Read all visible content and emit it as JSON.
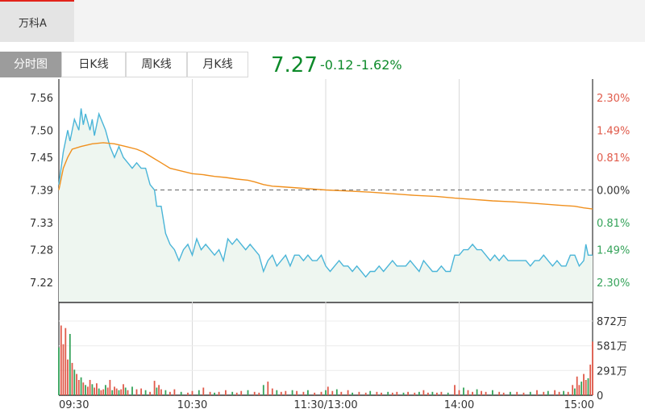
{
  "stock": {
    "name": "万科A"
  },
  "tabs": [
    "分时图",
    "日K线",
    "周K线",
    "月K线"
  ],
  "quote": {
    "price": "7.27",
    "change": "-0.12",
    "change_pct": "-1.62%"
  },
  "colors": {
    "price_line": "#4ab5d8",
    "avg_line": "#f0901e",
    "up": "#e05a4a",
    "down": "#35a35a",
    "pos_pct": "#e05a4a",
    "neg_pct": "#35a35a"
  },
  "chart_data": {
    "type": "line",
    "subtype": "intraday-timeshare",
    "prev_close": 7.39,
    "y_ticks": [
      "7.56",
      "7.50",
      "7.45",
      "7.39",
      "7.33",
      "7.28",
      "7.22"
    ],
    "y_tick_values": [
      7.56,
      7.5,
      7.45,
      7.39,
      7.33,
      7.28,
      7.22
    ],
    "pct_ticks": [
      "2.30%",
      "1.49%",
      "0.81%",
      "0.00%",
      "0.81%",
      "1.49%",
      "2.30%"
    ],
    "pct_signs": [
      1,
      1,
      1,
      0,
      -1,
      -1,
      -1
    ],
    "x_ticks": [
      "09:30",
      "10:30",
      "11:30/13:00",
      "14:00",
      "15:00"
    ],
    "x_tick_minutes": [
      0,
      60,
      120,
      180,
      240
    ],
    "total_minutes": 240,
    "ylim": [
      7.19,
      7.59
    ],
    "price_points": [
      [
        0,
        7.4
      ],
      [
        2,
        7.46
      ],
      [
        4,
        7.5
      ],
      [
        5,
        7.48
      ],
      [
        7,
        7.52
      ],
      [
        9,
        7.5
      ],
      [
        10,
        7.54
      ],
      [
        11,
        7.51
      ],
      [
        12,
        7.53
      ],
      [
        14,
        7.5
      ],
      [
        15,
        7.52
      ],
      [
        16,
        7.49
      ],
      [
        18,
        7.53
      ],
      [
        20,
        7.51
      ],
      [
        21,
        7.5
      ],
      [
        23,
        7.47
      ],
      [
        25,
        7.45
      ],
      [
        27,
        7.47
      ],
      [
        29,
        7.45
      ],
      [
        31,
        7.44
      ],
      [
        33,
        7.43
      ],
      [
        35,
        7.44
      ],
      [
        37,
        7.43
      ],
      [
        39,
        7.43
      ],
      [
        41,
        7.4
      ],
      [
        43,
        7.39
      ],
      [
        44,
        7.36
      ],
      [
        46,
        7.36
      ],
      [
        48,
        7.31
      ],
      [
        50,
        7.29
      ],
      [
        52,
        7.28
      ],
      [
        54,
        7.26
      ],
      [
        56,
        7.28
      ],
      [
        58,
        7.29
      ],
      [
        60,
        7.27
      ],
      [
        62,
        7.3
      ],
      [
        64,
        7.28
      ],
      [
        66,
        7.29
      ],
      [
        68,
        7.28
      ],
      [
        70,
        7.27
      ],
      [
        72,
        7.28
      ],
      [
        74,
        7.26
      ],
      [
        76,
        7.3
      ],
      [
        78,
        7.29
      ],
      [
        80,
        7.3
      ],
      [
        82,
        7.29
      ],
      [
        84,
        7.28
      ],
      [
        86,
        7.29
      ],
      [
        88,
        7.28
      ],
      [
        90,
        7.27
      ],
      [
        92,
        7.24
      ],
      [
        94,
        7.26
      ],
      [
        96,
        7.27
      ],
      [
        98,
        7.25
      ],
      [
        100,
        7.26
      ],
      [
        102,
        7.27
      ],
      [
        104,
        7.25
      ],
      [
        106,
        7.27
      ],
      [
        108,
        7.27
      ],
      [
        110,
        7.26
      ],
      [
        112,
        7.27
      ],
      [
        114,
        7.26
      ],
      [
        116,
        7.26
      ],
      [
        118,
        7.27
      ],
      [
        120,
        7.25
      ],
      [
        122,
        7.24
      ],
      [
        124,
        7.25
      ],
      [
        126,
        7.26
      ],
      [
        128,
        7.25
      ],
      [
        130,
        7.25
      ],
      [
        132,
        7.24
      ],
      [
        134,
        7.25
      ],
      [
        136,
        7.24
      ],
      [
        138,
        7.23
      ],
      [
        140,
        7.24
      ],
      [
        142,
        7.24
      ],
      [
        144,
        7.25
      ],
      [
        146,
        7.24
      ],
      [
        148,
        7.25
      ],
      [
        150,
        7.26
      ],
      [
        152,
        7.25
      ],
      [
        154,
        7.25
      ],
      [
        156,
        7.25
      ],
      [
        158,
        7.26
      ],
      [
        160,
        7.25
      ],
      [
        162,
        7.24
      ],
      [
        164,
        7.26
      ],
      [
        166,
        7.25
      ],
      [
        168,
        7.24
      ],
      [
        170,
        7.24
      ],
      [
        172,
        7.25
      ],
      [
        174,
        7.24
      ],
      [
        176,
        7.24
      ],
      [
        178,
        7.27
      ],
      [
        180,
        7.27
      ],
      [
        182,
        7.28
      ],
      [
        184,
        7.28
      ],
      [
        186,
        7.29
      ],
      [
        188,
        7.28
      ],
      [
        190,
        7.28
      ],
      [
        192,
        7.27
      ],
      [
        194,
        7.26
      ],
      [
        196,
        7.27
      ],
      [
        198,
        7.26
      ],
      [
        200,
        7.27
      ],
      [
        202,
        7.26
      ],
      [
        204,
        7.26
      ],
      [
        206,
        7.26
      ],
      [
        208,
        7.26
      ],
      [
        210,
        7.26
      ],
      [
        212,
        7.25
      ],
      [
        214,
        7.26
      ],
      [
        216,
        7.26
      ],
      [
        218,
        7.27
      ],
      [
        220,
        7.26
      ],
      [
        222,
        7.25
      ],
      [
        224,
        7.26
      ],
      [
        226,
        7.25
      ],
      [
        228,
        7.25
      ],
      [
        230,
        7.27
      ],
      [
        232,
        7.27
      ],
      [
        234,
        7.25
      ],
      [
        236,
        7.26
      ],
      [
        237,
        7.29
      ],
      [
        238,
        7.27
      ],
      [
        240,
        7.27
      ]
    ],
    "avg_points": [
      [
        0,
        7.39
      ],
      [
        2,
        7.43
      ],
      [
        4,
        7.45
      ],
      [
        6,
        7.465
      ],
      [
        10,
        7.47
      ],
      [
        15,
        7.475
      ],
      [
        20,
        7.477
      ],
      [
        25,
        7.475
      ],
      [
        30,
        7.47
      ],
      [
        35,
        7.465
      ],
      [
        38,
        7.46
      ],
      [
        42,
        7.45
      ],
      [
        46,
        7.44
      ],
      [
        50,
        7.43
      ],
      [
        55,
        7.425
      ],
      [
        60,
        7.42
      ],
      [
        65,
        7.418
      ],
      [
        70,
        7.415
      ],
      [
        75,
        7.413
      ],
      [
        80,
        7.41
      ],
      [
        85,
        7.408
      ],
      [
        88,
        7.405
      ],
      [
        92,
        7.4
      ],
      [
        96,
        7.397
      ],
      [
        100,
        7.396
      ],
      [
        110,
        7.393
      ],
      [
        120,
        7.39
      ],
      [
        130,
        7.388
      ],
      [
        140,
        7.386
      ],
      [
        150,
        7.383
      ],
      [
        160,
        7.38
      ],
      [
        170,
        7.378
      ],
      [
        178,
        7.375
      ],
      [
        185,
        7.373
      ],
      [
        195,
        7.37
      ],
      [
        205,
        7.368
      ],
      [
        215,
        7.365
      ],
      [
        225,
        7.362
      ],
      [
        232,
        7.36
      ],
      [
        236,
        7.357
      ],
      [
        240,
        7.355
      ]
    ],
    "volume": {
      "y_ticks": [
        "872万",
        "581万",
        "291万",
        "0"
      ],
      "y_tick_values": [
        872,
        581,
        291,
        0
      ],
      "max": 872,
      "bars": [
        [
          0,
          560,
          "down"
        ],
        [
          1,
          820,
          "up"
        ],
        [
          2,
          600,
          "up"
        ],
        [
          3,
          790,
          "up"
        ],
        [
          4,
          420,
          "up"
        ],
        [
          5,
          720,
          "down"
        ],
        [
          6,
          380,
          "up"
        ],
        [
          7,
          300,
          "down"
        ],
        [
          8,
          250,
          "up"
        ],
        [
          9,
          180,
          "up"
        ],
        [
          10,
          210,
          "down"
        ],
        [
          11,
          150,
          "up"
        ],
        [
          12,
          120,
          "down"
        ],
        [
          13,
          100,
          "up"
        ],
        [
          14,
          180,
          "up"
        ],
        [
          15,
          130,
          "down"
        ],
        [
          16,
          90,
          "up"
        ],
        [
          17,
          140,
          "up"
        ],
        [
          18,
          80,
          "down"
        ],
        [
          19,
          60,
          "up"
        ],
        [
          20,
          70,
          "up"
        ],
        [
          21,
          120,
          "down"
        ],
        [
          22,
          90,
          "up"
        ],
        [
          23,
          180,
          "up"
        ],
        [
          24,
          60,
          "down"
        ],
        [
          25,
          100,
          "up"
        ],
        [
          26,
          80,
          "up"
        ],
        [
          27,
          60,
          "down"
        ],
        [
          28,
          70,
          "up"
        ],
        [
          29,
          130,
          "up"
        ],
        [
          30,
          90,
          "down"
        ],
        [
          31,
          60,
          "up"
        ],
        [
          33,
          100,
          "down"
        ],
        [
          35,
          70,
          "up"
        ],
        [
          37,
          80,
          "up"
        ],
        [
          39,
          60,
          "down"
        ],
        [
          41,
          40,
          "up"
        ],
        [
          43,
          170,
          "up"
        ],
        [
          44,
          90,
          "down"
        ],
        [
          45,
          120,
          "up"
        ],
        [
          46,
          70,
          "up"
        ],
        [
          48,
          60,
          "down"
        ],
        [
          50,
          40,
          "up"
        ],
        [
          52,
          70,
          "up"
        ],
        [
          55,
          40,
          "down"
        ],
        [
          58,
          30,
          "up"
        ],
        [
          60,
          50,
          "up"
        ],
        [
          63,
          60,
          "down"
        ],
        [
          65,
          90,
          "up"
        ],
        [
          68,
          40,
          "up"
        ],
        [
          70,
          30,
          "down"
        ],
        [
          72,
          40,
          "up"
        ],
        [
          75,
          60,
          "up"
        ],
        [
          78,
          40,
          "down"
        ],
        [
          80,
          30,
          "up"
        ],
        [
          82,
          50,
          "up"
        ],
        [
          85,
          60,
          "down"
        ],
        [
          88,
          40,
          "up"
        ],
        [
          90,
          30,
          "up"
        ],
        [
          92,
          120,
          "down"
        ],
        [
          94,
          160,
          "up"
        ],
        [
          96,
          80,
          "up"
        ],
        [
          98,
          60,
          "down"
        ],
        [
          100,
          40,
          "up"
        ],
        [
          102,
          50,
          "up"
        ],
        [
          105,
          60,
          "down"
        ],
        [
          107,
          50,
          "up"
        ],
        [
          110,
          40,
          "up"
        ],
        [
          112,
          60,
          "down"
        ],
        [
          115,
          30,
          "up"
        ],
        [
          118,
          40,
          "up"
        ],
        [
          120,
          60,
          "down"
        ],
        [
          121,
          100,
          "up"
        ],
        [
          123,
          50,
          "up"
        ],
        [
          125,
          70,
          "down"
        ],
        [
          127,
          40,
          "up"
        ],
        [
          130,
          60,
          "up"
        ],
        [
          132,
          30,
          "down"
        ],
        [
          135,
          40,
          "up"
        ],
        [
          138,
          30,
          "up"
        ],
        [
          140,
          50,
          "down"
        ],
        [
          143,
          40,
          "up"
        ],
        [
          145,
          30,
          "up"
        ],
        [
          148,
          40,
          "down"
        ],
        [
          150,
          30,
          "up"
        ],
        [
          152,
          40,
          "up"
        ],
        [
          155,
          30,
          "down"
        ],
        [
          157,
          40,
          "up"
        ],
        [
          160,
          30,
          "up"
        ],
        [
          162,
          40,
          "down"
        ],
        [
          164,
          60,
          "up"
        ],
        [
          166,
          30,
          "up"
        ],
        [
          168,
          40,
          "down"
        ],
        [
          170,
          30,
          "up"
        ],
        [
          172,
          40,
          "up"
        ],
        [
          175,
          30,
          "down"
        ],
        [
          178,
          120,
          "up"
        ],
        [
          180,
          60,
          "up"
        ],
        [
          182,
          90,
          "down"
        ],
        [
          184,
          60,
          "up"
        ],
        [
          186,
          40,
          "up"
        ],
        [
          188,
          70,
          "down"
        ],
        [
          190,
          50,
          "up"
        ],
        [
          192,
          40,
          "up"
        ],
        [
          195,
          60,
          "down"
        ],
        [
          198,
          40,
          "up"
        ],
        [
          200,
          30,
          "up"
        ],
        [
          203,
          40,
          "down"
        ],
        [
          206,
          40,
          "up"
        ],
        [
          209,
          30,
          "up"
        ],
        [
          212,
          40,
          "down"
        ],
        [
          215,
          60,
          "up"
        ],
        [
          218,
          40,
          "up"
        ],
        [
          220,
          50,
          "down"
        ],
        [
          223,
          60,
          "up"
        ],
        [
          225,
          40,
          "up"
        ],
        [
          227,
          50,
          "down"
        ],
        [
          229,
          40,
          "up"
        ],
        [
          231,
          120,
          "up"
        ],
        [
          232,
          80,
          "down"
        ],
        [
          233,
          220,
          "up"
        ],
        [
          234,
          120,
          "up"
        ],
        [
          235,
          160,
          "down"
        ],
        [
          236,
          250,
          "up"
        ],
        [
          237,
          180,
          "up"
        ],
        [
          238,
          200,
          "down"
        ],
        [
          239,
          360,
          "up"
        ],
        [
          240,
          630,
          "up"
        ]
      ]
    }
  }
}
